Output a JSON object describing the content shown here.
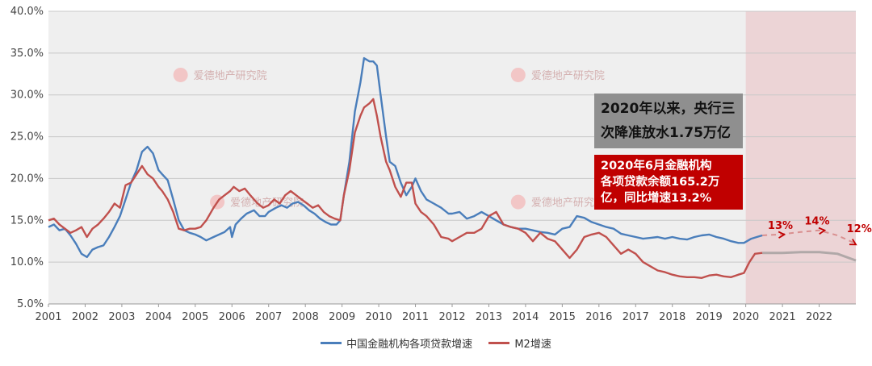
{
  "chart_data": {
    "type": "line",
    "title": "",
    "xlabel": "",
    "ylabel": "",
    "xlim": [
      2001,
      2023
    ],
    "ylim": [
      5,
      40
    ],
    "y_ticks": [
      "5.0%",
      "10.0%",
      "15.0%",
      "20.0%",
      "25.0%",
      "30.0%",
      "35.0%",
      "40.0%"
    ],
    "y_tick_values": [
      5,
      10,
      15,
      20,
      25,
      30,
      35,
      40
    ],
    "x_ticks": [
      "2001",
      "2002",
      "2003",
      "2004",
      "2005",
      "2006",
      "2007",
      "2008",
      "2009",
      "2010",
      "2011",
      "2012",
      "2013",
      "2014",
      "2015",
      "2016",
      "2017",
      "2018",
      "2019",
      "2020",
      "2021",
      "2022"
    ],
    "grid": "horizontal",
    "legend_position": "bottom",
    "forecast_shade": {
      "from": 2020.0,
      "to": 2023.0,
      "color": "#e8b4b8"
    },
    "series": [
      {
        "name": "中国金融机构各项贷款增速",
        "color": "#4a7ebb",
        "points": [
          [
            2001.0,
            14.2
          ],
          [
            2001.15,
            14.5
          ],
          [
            2001.3,
            13.8
          ],
          [
            2001.45,
            14.0
          ],
          [
            2001.6,
            13.2
          ],
          [
            2001.75,
            12.2
          ],
          [
            2001.9,
            11.0
          ],
          [
            2002.05,
            10.6
          ],
          [
            2002.2,
            11.5
          ],
          [
            2002.35,
            11.8
          ],
          [
            2002.5,
            12.0
          ],
          [
            2002.65,
            13.0
          ],
          [
            2002.8,
            14.2
          ],
          [
            2002.95,
            15.5
          ],
          [
            2003.1,
            17.5
          ],
          [
            2003.25,
            19.5
          ],
          [
            2003.4,
            21.0
          ],
          [
            2003.55,
            23.2
          ],
          [
            2003.7,
            23.8
          ],
          [
            2003.85,
            23.0
          ],
          [
            2004.0,
            21.0
          ],
          [
            2004.1,
            20.5
          ],
          [
            2004.25,
            19.8
          ],
          [
            2004.4,
            17.5
          ],
          [
            2004.55,
            15.0
          ],
          [
            2004.7,
            13.8
          ],
          [
            2004.85,
            13.5
          ],
          [
            2005.0,
            13.3
          ],
          [
            2005.15,
            13.0
          ],
          [
            2005.3,
            12.6
          ],
          [
            2005.5,
            13.0
          ],
          [
            2005.65,
            13.3
          ],
          [
            2005.8,
            13.6
          ],
          [
            2005.95,
            14.2
          ],
          [
            2006.0,
            13.0
          ],
          [
            2006.1,
            14.5
          ],
          [
            2006.25,
            15.2
          ],
          [
            2006.4,
            15.8
          ],
          [
            2006.6,
            16.2
          ],
          [
            2006.75,
            15.5
          ],
          [
            2006.9,
            15.5
          ],
          [
            2007.0,
            16.0
          ],
          [
            2007.2,
            16.5
          ],
          [
            2007.35,
            16.8
          ],
          [
            2007.5,
            16.5
          ],
          [
            2007.65,
            17.0
          ],
          [
            2007.8,
            17.2
          ],
          [
            2007.95,
            16.8
          ],
          [
            2008.1,
            16.2
          ],
          [
            2008.25,
            15.8
          ],
          [
            2008.4,
            15.2
          ],
          [
            2008.55,
            14.8
          ],
          [
            2008.7,
            14.5
          ],
          [
            2008.85,
            14.5
          ],
          [
            2008.95,
            15.0
          ],
          [
            2009.05,
            18.0
          ],
          [
            2009.2,
            22.0
          ],
          [
            2009.35,
            28.0
          ],
          [
            2009.5,
            31.5
          ],
          [
            2009.6,
            34.4
          ],
          [
            2009.75,
            34.0
          ],
          [
            2009.85,
            34.0
          ],
          [
            2009.95,
            33.5
          ],
          [
            2010.05,
            30.0
          ],
          [
            2010.2,
            25.0
          ],
          [
            2010.3,
            22.0
          ],
          [
            2010.45,
            21.5
          ],
          [
            2010.6,
            19.5
          ],
          [
            2010.75,
            18.0
          ],
          [
            2010.9,
            19.0
          ],
          [
            2011.0,
            20.0
          ],
          [
            2011.15,
            18.5
          ],
          [
            2011.3,
            17.5
          ],
          [
            2011.5,
            17.0
          ],
          [
            2011.7,
            16.5
          ],
          [
            2011.9,
            15.8
          ],
          [
            2012.0,
            15.8
          ],
          [
            2012.2,
            16.0
          ],
          [
            2012.4,
            15.2
          ],
          [
            2012.6,
            15.5
          ],
          [
            2012.8,
            16.0
          ],
          [
            2013.0,
            15.5
          ],
          [
            2013.2,
            15.0
          ],
          [
            2013.4,
            14.5
          ],
          [
            2013.6,
            14.2
          ],
          [
            2013.8,
            14.0
          ],
          [
            2014.0,
            14.0
          ],
          [
            2014.2,
            13.8
          ],
          [
            2014.4,
            13.6
          ],
          [
            2014.6,
            13.5
          ],
          [
            2014.8,
            13.3
          ],
          [
            2015.0,
            14.0
          ],
          [
            2015.2,
            14.2
          ],
          [
            2015.4,
            15.5
          ],
          [
            2015.6,
            15.3
          ],
          [
            2015.8,
            14.8
          ],
          [
            2016.0,
            14.5
          ],
          [
            2016.2,
            14.2
          ],
          [
            2016.4,
            14.0
          ],
          [
            2016.6,
            13.4
          ],
          [
            2016.8,
            13.2
          ],
          [
            2017.0,
            13.0
          ],
          [
            2017.2,
            12.8
          ],
          [
            2017.4,
            12.9
          ],
          [
            2017.6,
            13.0
          ],
          [
            2017.8,
            12.8
          ],
          [
            2018.0,
            13.0
          ],
          [
            2018.2,
            12.8
          ],
          [
            2018.4,
            12.7
          ],
          [
            2018.6,
            13.0
          ],
          [
            2018.8,
            13.2
          ],
          [
            2019.0,
            13.3
          ],
          [
            2019.2,
            13.0
          ],
          [
            2019.4,
            12.8
          ],
          [
            2019.6,
            12.5
          ],
          [
            2019.8,
            12.3
          ],
          [
            2019.95,
            12.3
          ],
          [
            2020.15,
            12.8
          ],
          [
            2020.3,
            13.0
          ],
          [
            2020.45,
            13.2
          ]
        ]
      },
      {
        "name": "M2增速",
        "color": "#c0504d",
        "points": [
          [
            2001.0,
            15.0
          ],
          [
            2001.15,
            15.2
          ],
          [
            2001.3,
            14.5
          ],
          [
            2001.45,
            14.0
          ],
          [
            2001.6,
            13.5
          ],
          [
            2001.75,
            13.8
          ],
          [
            2001.9,
            14.2
          ],
          [
            2002.05,
            13.0
          ],
          [
            2002.2,
            14.0
          ],
          [
            2002.35,
            14.5
          ],
          [
            2002.5,
            15.2
          ],
          [
            2002.65,
            16.0
          ],
          [
            2002.8,
            17.0
          ],
          [
            2002.95,
            16.5
          ],
          [
            2003.1,
            19.2
          ],
          [
            2003.25,
            19.5
          ],
          [
            2003.4,
            20.5
          ],
          [
            2003.55,
            21.5
          ],
          [
            2003.7,
            20.5
          ],
          [
            2003.85,
            20.0
          ],
          [
            2004.0,
            19.0
          ],
          [
            2004.1,
            18.5
          ],
          [
            2004.25,
            17.5
          ],
          [
            2004.4,
            16.0
          ],
          [
            2004.55,
            14.0
          ],
          [
            2004.7,
            13.8
          ],
          [
            2004.85,
            14.0
          ],
          [
            2005.0,
            14.0
          ],
          [
            2005.15,
            14.2
          ],
          [
            2005.3,
            15.0
          ],
          [
            2005.5,
            16.5
          ],
          [
            2005.65,
            17.5
          ],
          [
            2005.8,
            18.0
          ],
          [
            2005.95,
            18.5
          ],
          [
            2006.05,
            19.0
          ],
          [
            2006.2,
            18.5
          ],
          [
            2006.35,
            18.8
          ],
          [
            2006.5,
            18.0
          ],
          [
            2006.7,
            17.0
          ],
          [
            2006.85,
            16.5
          ],
          [
            2007.0,
            16.8
          ],
          [
            2007.15,
            17.5
          ],
          [
            2007.3,
            17.0
          ],
          [
            2007.45,
            18.0
          ],
          [
            2007.6,
            18.5
          ],
          [
            2007.75,
            18.0
          ],
          [
            2007.9,
            17.5
          ],
          [
            2008.05,
            17.0
          ],
          [
            2008.2,
            16.5
          ],
          [
            2008.35,
            16.8
          ],
          [
            2008.5,
            16.0
          ],
          [
            2008.65,
            15.5
          ],
          [
            2008.8,
            15.2
          ],
          [
            2008.95,
            15.0
          ],
          [
            2009.05,
            18.0
          ],
          [
            2009.2,
            21.0
          ],
          [
            2009.35,
            25.5
          ],
          [
            2009.5,
            27.5
          ],
          [
            2009.6,
            28.5
          ],
          [
            2009.75,
            29.0
          ],
          [
            2009.85,
            29.5
          ],
          [
            2009.95,
            27.5
          ],
          [
            2010.05,
            25.0
          ],
          [
            2010.2,
            22.0
          ],
          [
            2010.3,
            21.0
          ],
          [
            2010.45,
            19.0
          ],
          [
            2010.6,
            17.8
          ],
          [
            2010.75,
            19.5
          ],
          [
            2010.9,
            19.5
          ],
          [
            2011.0,
            17.0
          ],
          [
            2011.15,
            16.0
          ],
          [
            2011.3,
            15.5
          ],
          [
            2011.5,
            14.5
          ],
          [
            2011.7,
            13.0
          ],
          [
            2011.9,
            12.8
          ],
          [
            2012.0,
            12.5
          ],
          [
            2012.2,
            13.0
          ],
          [
            2012.4,
            13.5
          ],
          [
            2012.6,
            13.5
          ],
          [
            2012.8,
            14.0
          ],
          [
            2013.0,
            15.5
          ],
          [
            2013.2,
            16.0
          ],
          [
            2013.4,
            14.5
          ],
          [
            2013.6,
            14.2
          ],
          [
            2013.8,
            14.0
          ],
          [
            2014.0,
            13.5
          ],
          [
            2014.2,
            12.5
          ],
          [
            2014.4,
            13.5
          ],
          [
            2014.6,
            12.8
          ],
          [
            2014.8,
            12.5
          ],
          [
            2015.0,
            11.5
          ],
          [
            2015.2,
            10.5
          ],
          [
            2015.4,
            11.5
          ],
          [
            2015.6,
            13.0
          ],
          [
            2015.8,
            13.3
          ],
          [
            2016.0,
            13.5
          ],
          [
            2016.2,
            13.0
          ],
          [
            2016.4,
            12.0
          ],
          [
            2016.6,
            11.0
          ],
          [
            2016.8,
            11.5
          ],
          [
            2017.0,
            11.0
          ],
          [
            2017.2,
            10.0
          ],
          [
            2017.4,
            9.5
          ],
          [
            2017.6,
            9.0
          ],
          [
            2017.8,
            8.8
          ],
          [
            2018.0,
            8.5
          ],
          [
            2018.2,
            8.3
          ],
          [
            2018.4,
            8.2
          ],
          [
            2018.6,
            8.2
          ],
          [
            2018.8,
            8.1
          ],
          [
            2019.0,
            8.4
          ],
          [
            2019.2,
            8.5
          ],
          [
            2019.4,
            8.3
          ],
          [
            2019.6,
            8.2
          ],
          [
            2019.8,
            8.5
          ],
          [
            2019.95,
            8.7
          ],
          [
            2020.1,
            10.0
          ],
          [
            2020.25,
            11.0
          ],
          [
            2020.45,
            11.1
          ]
        ]
      }
    ],
    "projections": [
      {
        "role": "loan-forecast",
        "color": "#d98f8f",
        "dash": true,
        "points": [
          [
            2020.45,
            13.2
          ],
          [
            2020.9,
            13.3
          ],
          [
            2021.5,
            13.6
          ],
          [
            2022.0,
            13.8
          ],
          [
            2022.5,
            13.2
          ],
          [
            2023.0,
            12.2
          ]
        ]
      },
      {
        "role": "m2-forecast",
        "color": "#b0a8a8",
        "dash": false,
        "points": [
          [
            2020.45,
            11.1
          ],
          [
            2021.0,
            11.1
          ],
          [
            2021.5,
            11.2
          ],
          [
            2022.0,
            11.2
          ],
          [
            2022.5,
            11.0
          ],
          [
            2023.0,
            10.2
          ]
        ]
      }
    ],
    "annotations": [
      {
        "text": "13%",
        "x": 2020.6,
        "y": 13.4
      },
      {
        "text": "14%",
        "x": 2021.6,
        "y": 13.9
      },
      {
        "text": "12%",
        "x": 2022.75,
        "y": 13.0
      }
    ]
  },
  "watermark": {
    "text": "爱德地产研究院",
    "logo": "ade-logo-icon"
  },
  "callouts": {
    "gray_lines": [
      "2020年以来，央行三",
      "次降准放水1.75万亿"
    ],
    "red_lines": [
      "2020年6月金融机构",
      "各项贷款余额165.2万",
      "亿，同比增速13.2%"
    ]
  },
  "legend": {
    "loan_label": "中国金融机构各项贷款增速",
    "m2_label": "M2增速",
    "loan_color": "#4a7ebb",
    "m2_color": "#c0504d"
  }
}
